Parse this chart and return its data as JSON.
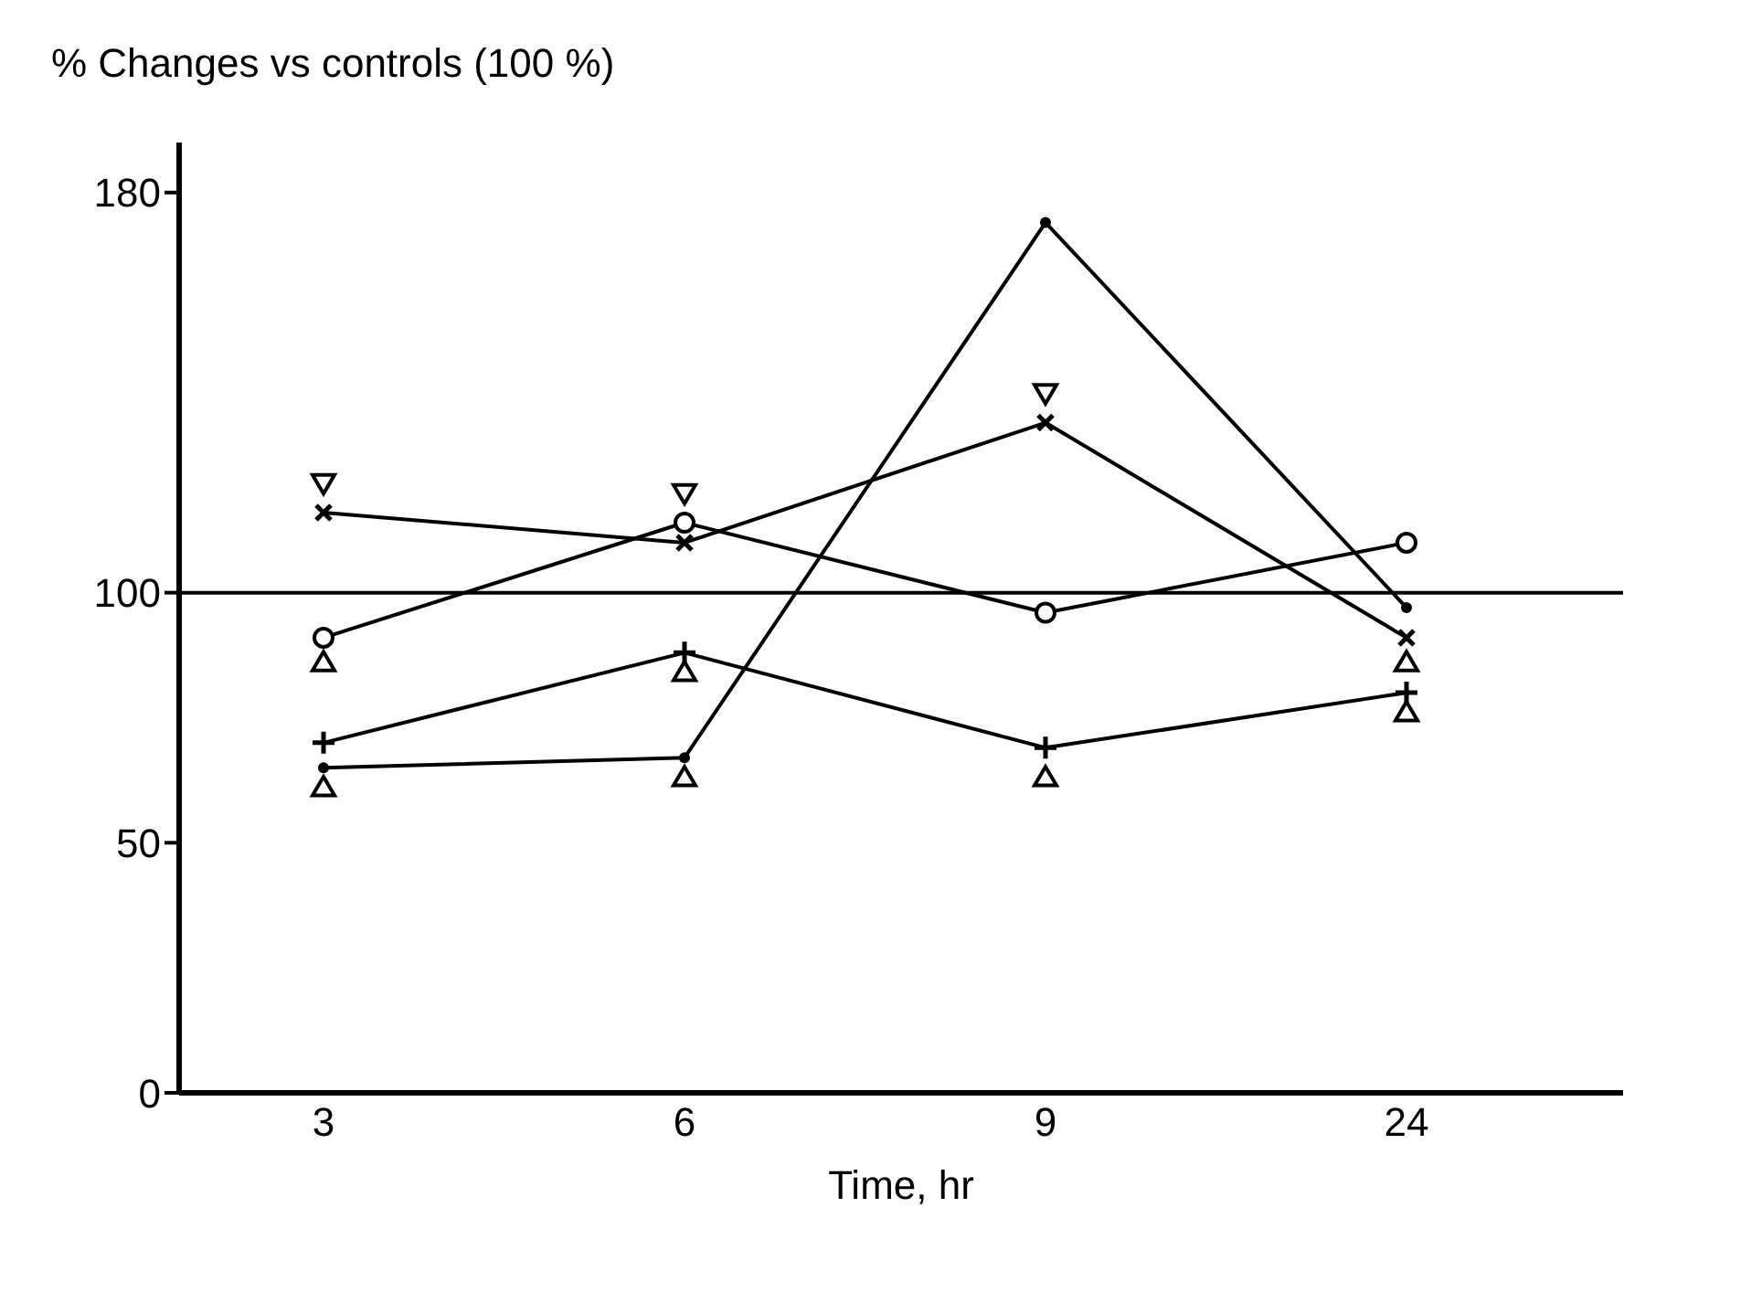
{
  "chart_data": {
    "type": "line",
    "ylabel": "% Changes vs controls (100 %)",
    "xlabel": "Time, hr",
    "categories": [
      "3",
      "6",
      "9",
      "24"
    ],
    "ylim": [
      0,
      190
    ],
    "yticks": [
      0,
      50,
      100,
      180
    ],
    "grid": false,
    "legend": false,
    "ref_lines": [
      {
        "axis": "y",
        "value": 100,
        "color": "#000000"
      }
    ],
    "series": [
      {
        "marker": "dot",
        "color": "#000000",
        "values": [
          65,
          67,
          174,
          97
        ]
      },
      {
        "marker": "x",
        "color": "#000000",
        "values": [
          116,
          110,
          134,
          91
        ]
      },
      {
        "marker": "circle",
        "color": "#000000",
        "values": [
          91,
          114,
          96,
          110
        ]
      },
      {
        "marker": "plus",
        "color": "#000000",
        "values": [
          70,
          88,
          69,
          80
        ]
      },
      {
        "type": "scatter",
        "marker": "triangle-down",
        "color": "#000000",
        "values": [
          122,
          120,
          140,
          null
        ]
      },
      {
        "type": "scatter",
        "marker": "triangle",
        "color": "#000000",
        "values": [
          86,
          84,
          null,
          86
        ]
      },
      {
        "type": "scatter",
        "marker": "triangle",
        "color": "#000000",
        "values": [
          61,
          63,
          63,
          76
        ]
      }
    ]
  }
}
